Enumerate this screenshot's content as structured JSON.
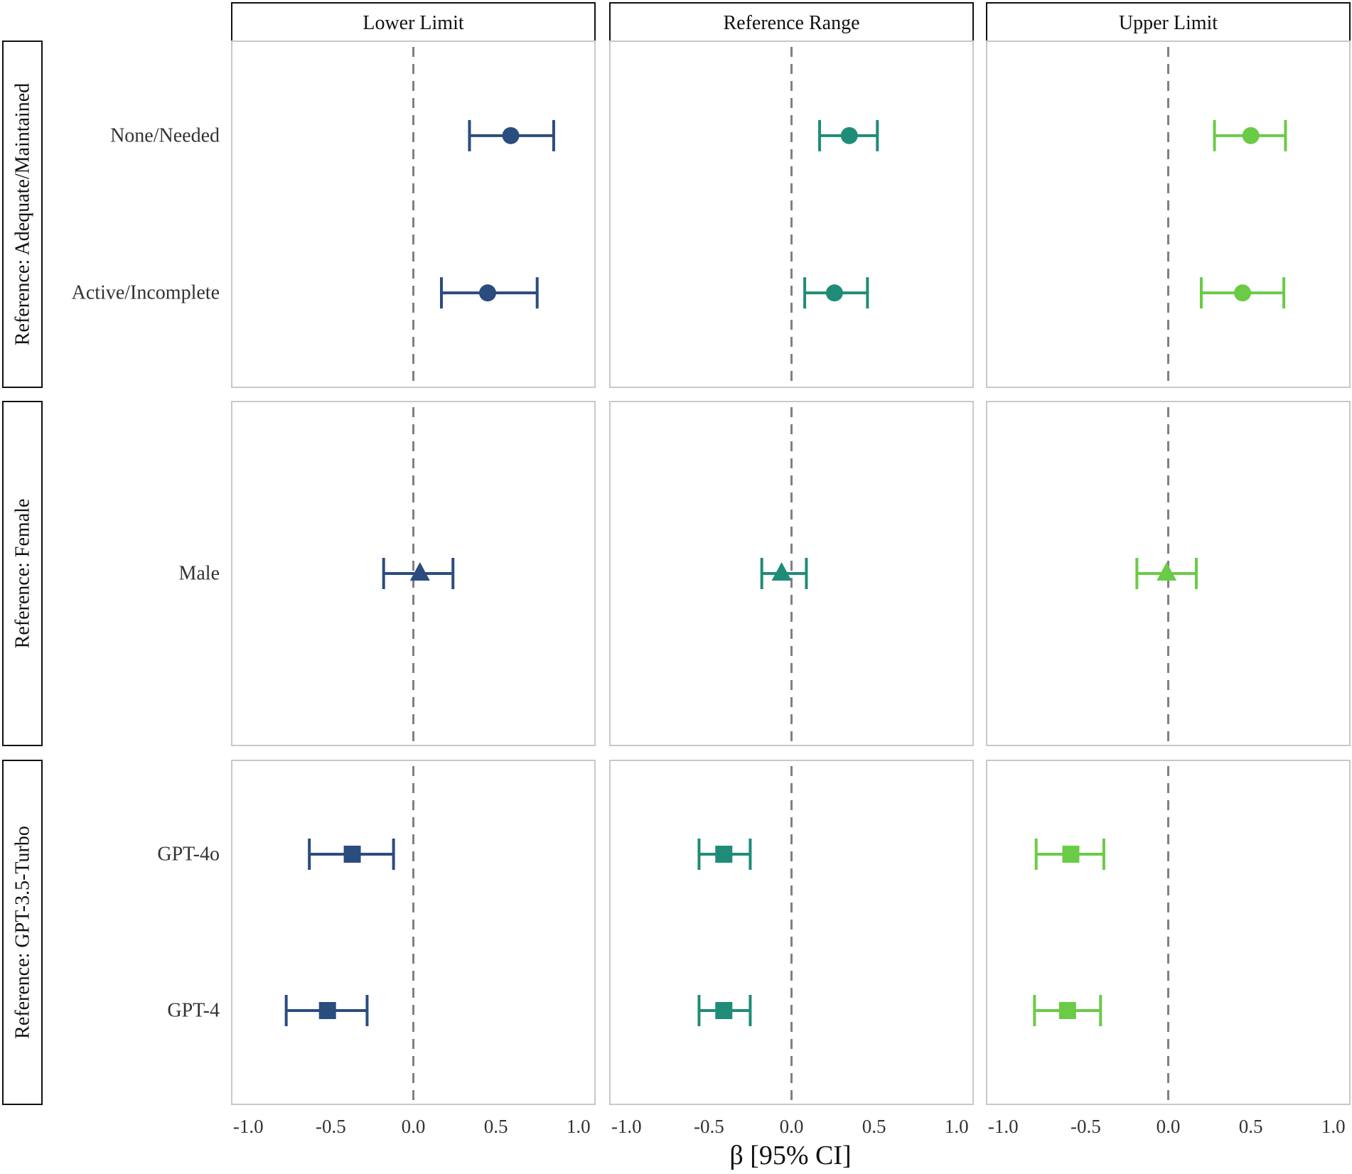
{
  "chart_data": {
    "type": "forest",
    "xlabel": "β [95% CI]",
    "xlim": [
      -1.1,
      1.1
    ],
    "x_ticks": [
      -1.0,
      -0.5,
      0.0,
      0.5,
      1.0
    ],
    "x_tick_labels": [
      "-1.0",
      "-0.5",
      "0.0",
      "0.5",
      "1.0"
    ],
    "reference_line": 0,
    "columns": [
      {
        "label": "Lower Limit",
        "color": "#2b4c7e"
      },
      {
        "label": "Reference Range",
        "color": "#1f8c78"
      },
      {
        "label": "Upper Limit",
        "color": "#6acb46"
      }
    ],
    "rows": [
      {
        "label": "Reference: Adequate/Maintained",
        "shape": "circle",
        "terms": [
          "None/Needed",
          "Active/Incomplete"
        ],
        "estimates": [
          [
            {
              "est": 0.59,
              "lo": 0.34,
              "hi": 0.85
            },
            {
              "est": 0.45,
              "lo": 0.17,
              "hi": 0.75
            }
          ],
          [
            {
              "est": 0.35,
              "lo": 0.17,
              "hi": 0.52
            },
            {
              "est": 0.26,
              "lo": 0.08,
              "hi": 0.46
            }
          ],
          [
            {
              "est": 0.5,
              "lo": 0.28,
              "hi": 0.71
            },
            {
              "est": 0.45,
              "lo": 0.2,
              "hi": 0.7
            }
          ]
        ]
      },
      {
        "label": "Reference: Female",
        "shape": "triangle",
        "terms": [
          "Male"
        ],
        "estimates": [
          [
            {
              "est": 0.04,
              "lo": -0.18,
              "hi": 0.24
            }
          ],
          [
            {
              "est": -0.06,
              "lo": -0.18,
              "hi": 0.09
            }
          ],
          [
            {
              "est": -0.01,
              "lo": -0.19,
              "hi": 0.17
            }
          ]
        ]
      },
      {
        "label": "Reference: GPT-3.5-Turbo",
        "shape": "square",
        "terms": [
          "GPT-4o",
          "GPT-4"
        ],
        "estimates": [
          [
            {
              "est": -0.37,
              "lo": -0.63,
              "hi": -0.12
            },
            {
              "est": -0.52,
              "lo": -0.77,
              "hi": -0.28
            }
          ],
          [
            {
              "est": -0.41,
              "lo": -0.56,
              "hi": -0.25
            },
            {
              "est": -0.41,
              "lo": -0.56,
              "hi": -0.25
            }
          ],
          [
            {
              "est": -0.59,
              "lo": -0.8,
              "hi": -0.39
            },
            {
              "est": -0.61,
              "lo": -0.81,
              "hi": -0.41
            }
          ]
        ]
      }
    ]
  }
}
